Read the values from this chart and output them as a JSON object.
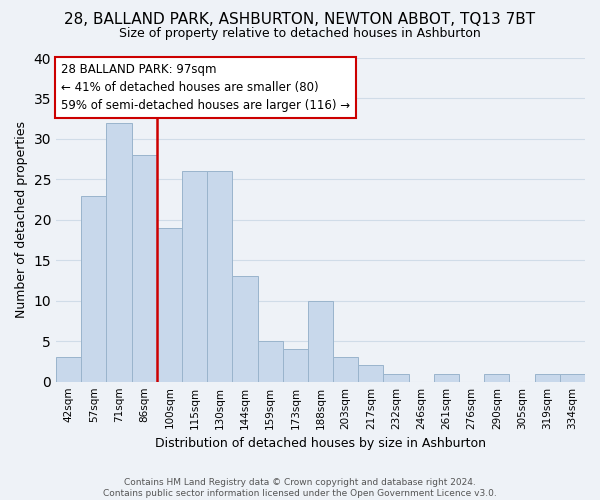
{
  "title": "28, BALLAND PARK, ASHBURTON, NEWTON ABBOT, TQ13 7BT",
  "subtitle": "Size of property relative to detached houses in Ashburton",
  "xlabel": "Distribution of detached houses by size in Ashburton",
  "ylabel": "Number of detached properties",
  "bin_labels": [
    "42sqm",
    "57sqm",
    "71sqm",
    "86sqm",
    "100sqm",
    "115sqm",
    "130sqm",
    "144sqm",
    "159sqm",
    "173sqm",
    "188sqm",
    "203sqm",
    "217sqm",
    "232sqm",
    "246sqm",
    "261sqm",
    "276sqm",
    "290sqm",
    "305sqm",
    "319sqm",
    "334sqm"
  ],
  "bar_heights": [
    3,
    23,
    32,
    28,
    19,
    26,
    26,
    13,
    5,
    4,
    10,
    3,
    2,
    1,
    0,
    1,
    0,
    1,
    0,
    1,
    1
  ],
  "bar_color": "#c8d8eb",
  "bar_edge_color": "#9ab4cc",
  "vline_color": "#cc0000",
  "ylim": [
    0,
    40
  ],
  "yticks": [
    0,
    5,
    10,
    15,
    20,
    25,
    30,
    35,
    40
  ],
  "annotation_title": "28 BALLAND PARK: 97sqm",
  "annotation_line1": "← 41% of detached houses are smaller (80)",
  "annotation_line2": "59% of semi-detached houses are larger (116) →",
  "annotation_box_color": "#ffffff",
  "annotation_box_edge": "#cc0000",
  "footer_line1": "Contains HM Land Registry data © Crown copyright and database right 2024.",
  "footer_line2": "Contains public sector information licensed under the Open Government Licence v3.0.",
  "grid_color": "#d0dce8",
  "background_color": "#eef2f7",
  "title_fontsize": 11,
  "subtitle_fontsize": 9,
  "axis_label_fontsize": 9,
  "tick_fontsize": 7.5,
  "annotation_fontsize": 8.5,
  "footer_fontsize": 6.5
}
